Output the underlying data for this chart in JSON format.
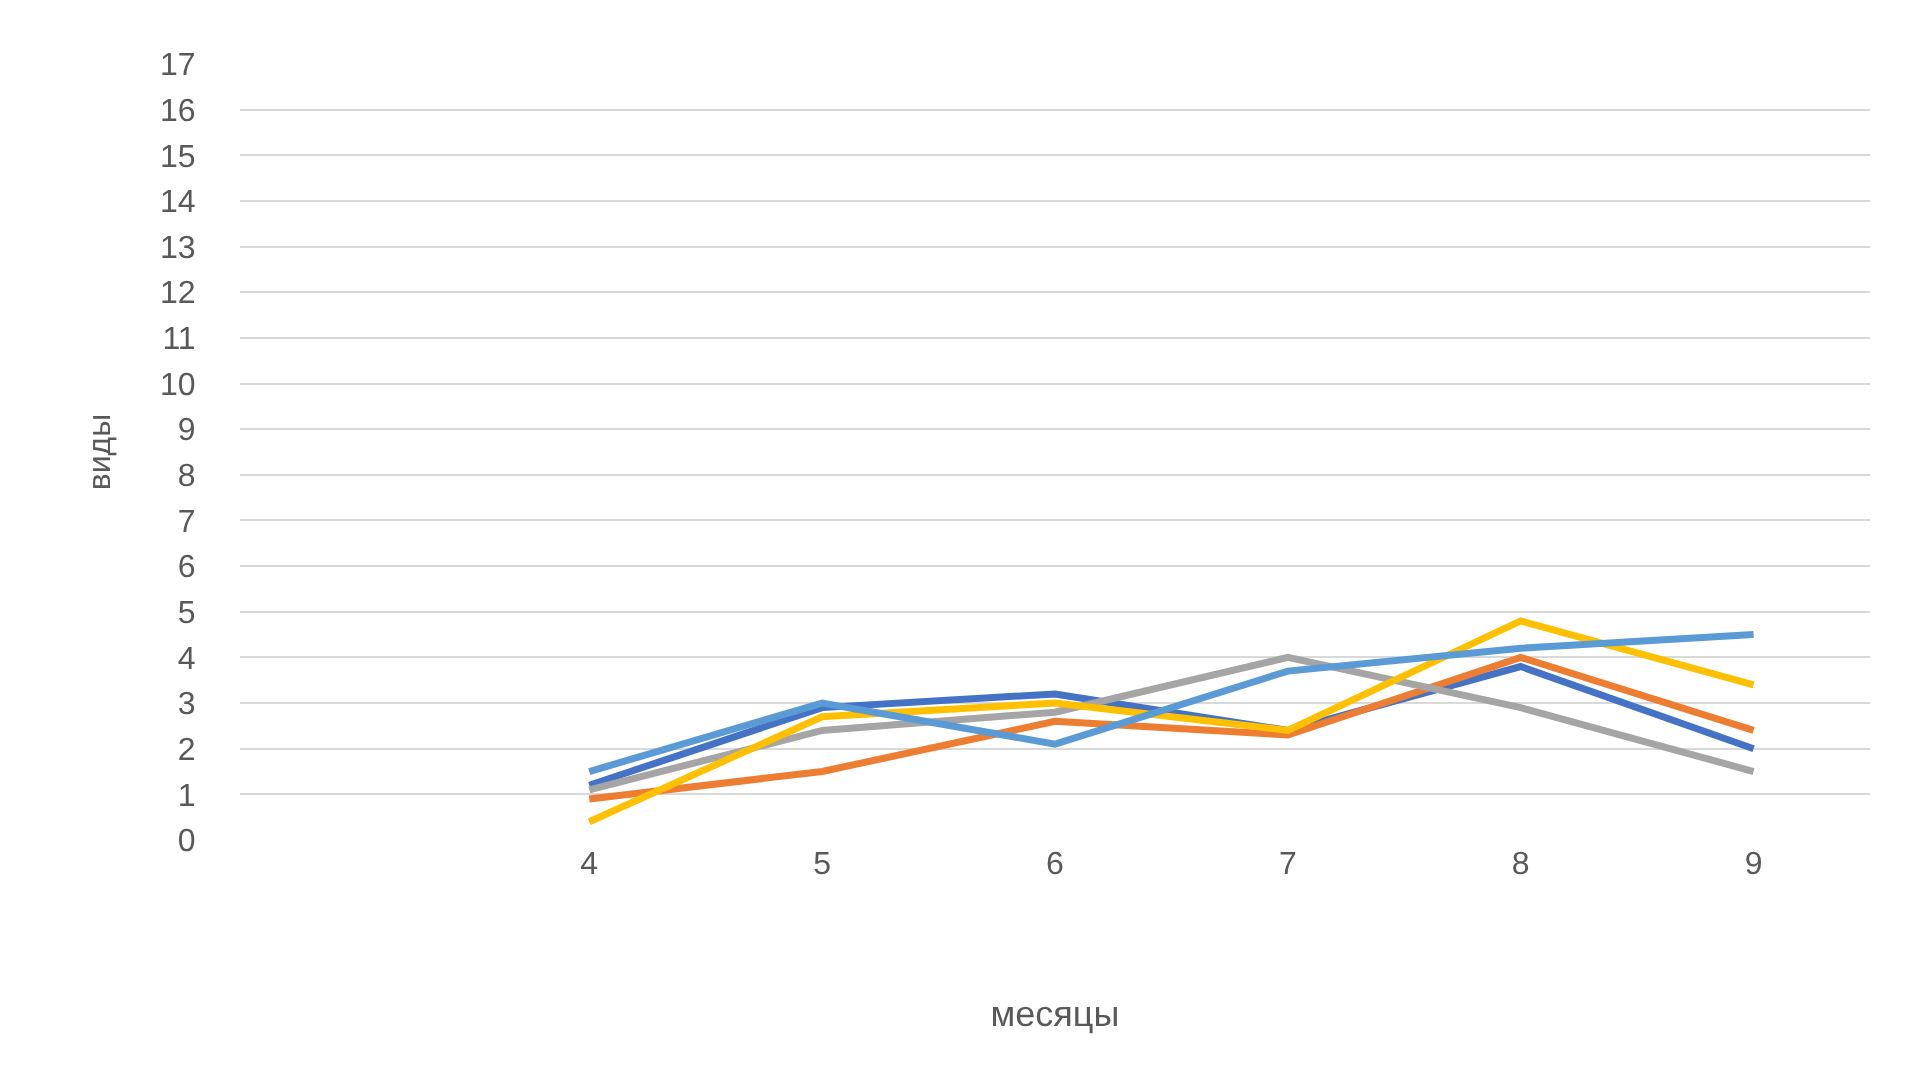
{
  "chart_data": {
    "type": "line",
    "xlabel": "месяцы",
    "ylabel": "виды",
    "categories": [
      null,
      "4",
      "5",
      "6",
      "7",
      "8",
      "9"
    ],
    "series": [
      {
        "color": "#4472c4",
        "values": [
          null,
          1.2,
          2.9,
          3.2,
          2.4,
          3.8,
          2.0
        ]
      },
      {
        "color": "#ed7d31",
        "values": [
          null,
          0.9,
          1.5,
          2.6,
          2.3,
          4.0,
          2.4
        ]
      },
      {
        "color": "#a5a5a5",
        "values": [
          null,
          1.1,
          2.4,
          2.8,
          4.0,
          2.9,
          1.5
        ]
      },
      {
        "color": "#ffc000",
        "values": [
          null,
          0.4,
          2.7,
          3.0,
          2.4,
          4.8,
          3.4
        ]
      },
      {
        "color": "#5b9bd5",
        "values": [
          null,
          1.5,
          3.0,
          2.1,
          3.7,
          4.2,
          4.5
        ]
      }
    ],
    "ylim": [
      0,
      17
    ],
    "yticks": [
      0,
      1,
      2,
      3,
      4,
      5,
      6,
      7,
      8,
      9,
      10,
      11,
      12,
      13,
      14,
      15,
      16,
      17
    ],
    "grid": "y",
    "marker": "none",
    "line_style": "solid"
  }
}
